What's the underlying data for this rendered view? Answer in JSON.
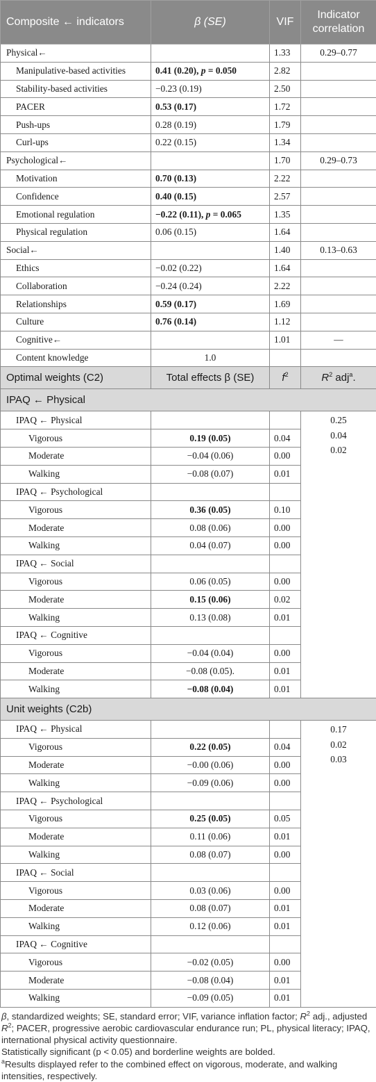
{
  "header": {
    "col1": "Composite ← indicators",
    "col2": "β (SE)",
    "col3": "VIF",
    "col4_line1": "Indicator",
    "col4_line2": "correlation"
  },
  "composites": [
    {
      "name": "Physical←",
      "vif": "1.33",
      "corr": "0.29–0.77",
      "items": [
        {
          "name": "Manipulative-based activities",
          "beta": "0.41 (0.20), p = 0.050",
          "bold": true,
          "vif": "2.82"
        },
        {
          "name": "Stability-based activities",
          "beta": "−0.23 (0.19)",
          "bold": false,
          "vif": "2.50"
        },
        {
          "name": "PACER",
          "beta": "0.53 (0.17)",
          "bold": true,
          "vif": "1.72"
        },
        {
          "name": "Push-ups",
          "beta": "0.28 (0.19)",
          "bold": false,
          "vif": "1.79"
        },
        {
          "name": "Curl-ups",
          "beta": "0.22 (0.15)",
          "bold": false,
          "vif": "1.34"
        }
      ]
    },
    {
      "name": "Psychological←",
      "vif": "1.70",
      "corr": "0.29–0.73",
      "items": [
        {
          "name": "Motivation",
          "beta": "0.70 (0.13)",
          "bold": true,
          "vif": "2.22"
        },
        {
          "name": "Confidence",
          "beta": "0.40 (0.15)",
          "bold": true,
          "vif": "2.57"
        },
        {
          "name": "Emotional regulation",
          "beta": "−0.22 (0.11), p = 0.065",
          "bold": true,
          "vif": "1.35"
        },
        {
          "name": "Physical regulation",
          "beta": "0.06 (0.15)",
          "bold": false,
          "vif": "1.64"
        }
      ]
    },
    {
      "name": "Social←",
      "vif": "1.40",
      "corr": "0.13–0.63",
      "items": [
        {
          "name": "Ethics",
          "beta": "−0.02 (0.22)",
          "bold": false,
          "vif": "1.64"
        },
        {
          "name": "Collaboration",
          "beta": "−0.24 (0.24)",
          "bold": false,
          "vif": "2.22"
        },
        {
          "name": "Relationships",
          "beta": "0.59 (0.17)",
          "bold": true,
          "vif": "1.69"
        },
        {
          "name": "Culture",
          "beta": "0.76 (0.14)",
          "bold": true,
          "vif": "1.12"
        }
      ]
    }
  ],
  "cognitive": {
    "name": "Cognitive←",
    "vif": "1.01",
    "corr": "—",
    "item_name": "Content knowledge",
    "item_beta": "1.0"
  },
  "optimal": {
    "title": "Optimal weights (C2)",
    "col2": "Total effects β (SE)",
    "col3": "f",
    "col3_sup": "2",
    "col4": "R",
    "col4_sup": "2",
    "col4_tail": " adj",
    "col4_sup2": "a",
    "col4_end": ".",
    "subtitle": "IPAQ ← Physical",
    "r2": [
      "0.25",
      "0.04",
      "0.02"
    ],
    "groups": [
      {
        "name": "IPAQ ← Physical",
        "rows": [
          {
            "name": "Vigorous",
            "beta": "0.19 (0.05)",
            "bold": true,
            "f2": "0.04"
          },
          {
            "name": "Moderate",
            "beta": "−0.04 (0.06)",
            "bold": false,
            "f2": "0.00"
          },
          {
            "name": "Walking",
            "beta": "−0.08 (0.07)",
            "bold": false,
            "f2": "0.01"
          }
        ]
      },
      {
        "name": "IPAQ ← Psychological",
        "rows": [
          {
            "name": "Vigorous",
            "beta": "0.36 (0.05)",
            "bold": true,
            "f2": "0.10"
          },
          {
            "name": "Moderate",
            "beta": "0.08 (0.06)",
            "bold": false,
            "f2": "0.00"
          },
          {
            "name": "Walking",
            "beta": "0.04 (0.07)",
            "bold": false,
            "f2": "0.00"
          }
        ]
      },
      {
        "name": "IPAQ ← Social",
        "rows": [
          {
            "name": "Vigorous",
            "beta": "0.06 (0.05)",
            "bold": false,
            "f2": "0.00"
          },
          {
            "name": "Moderate",
            "beta": "0.15 (0.06)",
            "bold": true,
            "f2": "0.02"
          },
          {
            "name": "Walking",
            "beta": "0.13 (0.08)",
            "bold": false,
            "f2": "0.01"
          }
        ]
      },
      {
        "name": "IPAQ ← Cognitive",
        "rows": [
          {
            "name": "Vigorous",
            "beta": "−0.04 (0.04)",
            "bold": false,
            "f2": "0.00"
          },
          {
            "name": "Moderate",
            "beta": "−0.08 (0.05).",
            "bold": false,
            "f2": "0.01"
          },
          {
            "name": "Walking",
            "beta": "−0.08 (0.04)",
            "bold": true,
            "f2": "0.01"
          }
        ]
      }
    ]
  },
  "unit": {
    "title": "Unit weights (C2b)",
    "r2": [
      "0.17",
      "0.02",
      "0.03"
    ],
    "groups": [
      {
        "name": "IPAQ ← Physical",
        "rows": [
          {
            "name": "Vigorous",
            "beta": "0.22 (0.05)",
            "bold": true,
            "f2": "0.04"
          },
          {
            "name": "Moderate",
            "beta": "−0.00 (0.06)",
            "bold": false,
            "f2": "0.00"
          },
          {
            "name": "Walking",
            "beta": "−0.09 (0.06)",
            "bold": false,
            "f2": "0.00"
          }
        ]
      },
      {
        "name": "IPAQ ← Psychological",
        "rows": [
          {
            "name": "Vigorous",
            "beta": "0.25 (0.05)",
            "bold": true,
            "f2": "0.05"
          },
          {
            "name": "Moderate",
            "beta": "0.11 (0.06)",
            "bold": false,
            "f2": "0.01"
          },
          {
            "name": "Walking",
            "beta": "0.08 (0.07)",
            "bold": false,
            "f2": "0.00"
          }
        ]
      },
      {
        "name": "IPAQ ← Social",
        "rows": [
          {
            "name": "Vigorous",
            "beta": "0.03 (0.06)",
            "bold": false,
            "f2": "0.00"
          },
          {
            "name": "Moderate",
            "beta": "0.08 (0.07)",
            "bold": false,
            "f2": "0.01"
          },
          {
            "name": "Walking",
            "beta": "0.12 (0.06)",
            "bold": false,
            "f2": "0.01"
          }
        ]
      },
      {
        "name": "IPAQ ← Cognitive",
        "rows": [
          {
            "name": "Vigorous",
            "beta": "−0.02 (0.05)",
            "bold": false,
            "f2": "0.00"
          },
          {
            "name": "Moderate",
            "beta": "−0.08 (0.04)",
            "bold": false,
            "f2": "0.01"
          },
          {
            "name": "Walking",
            "beta": "−0.09 (0.05)",
            "bold": false,
            "f2": "0.01"
          }
        ]
      }
    ]
  },
  "notes": {
    "line1": "β, standardized weights; SE, standard error; VIF, variance inflation factor; R2 adj., adjusted R2; PACER, progressive aerobic cardiovascular endurance run; PL, physical literacy; IPAQ, international physical activity questionnaire.",
    "line2": "Statistically significant (p < 0.05) and borderline weights are bolded.",
    "line3_sup": "a",
    "line3": "Results displayed refer to the combined effect on vigorous, moderate, and walking intensities, respectively."
  }
}
